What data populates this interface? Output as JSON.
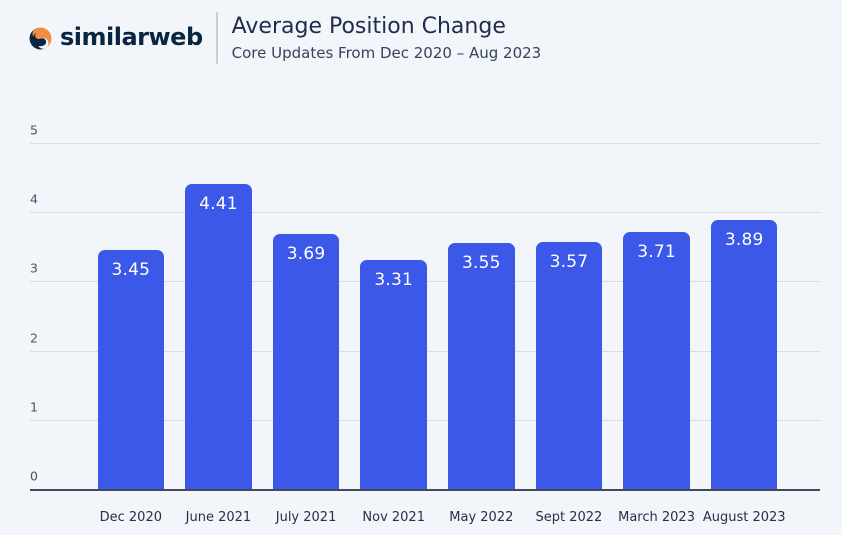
{
  "header": {
    "brand": "similarweb",
    "title": "Average Position Change",
    "subtitle": "Core Updates From Dec 2020 – Aug 2023"
  },
  "colors": {
    "background": "#f2f5f9",
    "bar": "#3b58e8",
    "brand_navy": "#092540",
    "brand_orange": "#f28c45",
    "gridline": "#d9dde3",
    "baseline": "#414a56",
    "bar_value_text": "#ffffff"
  },
  "chart_data": {
    "type": "bar",
    "title": "Average Position Change",
    "subtitle": "Core Updates From Dec 2020 – Aug 2023",
    "categories": [
      "Dec 2020",
      "June 2021",
      "July 2021",
      "Nov 2021",
      "May 2022",
      "Sept 2022",
      "March 2023",
      "August 2023"
    ],
    "values": [
      3.45,
      4.41,
      3.69,
      3.31,
      3.55,
      3.57,
      3.71,
      3.89
    ],
    "value_labels": [
      "3.45",
      "4.41",
      "3.69",
      "3.31",
      "3.55",
      "3.57",
      "3.71",
      "3.89"
    ],
    "xlabel": "",
    "ylabel": "",
    "ylim": [
      0,
      5
    ],
    "y_ticks": [
      5,
      4,
      3,
      2,
      1,
      0
    ],
    "grid": true,
    "legend": false,
    "bar_color": "#3b58e8"
  }
}
